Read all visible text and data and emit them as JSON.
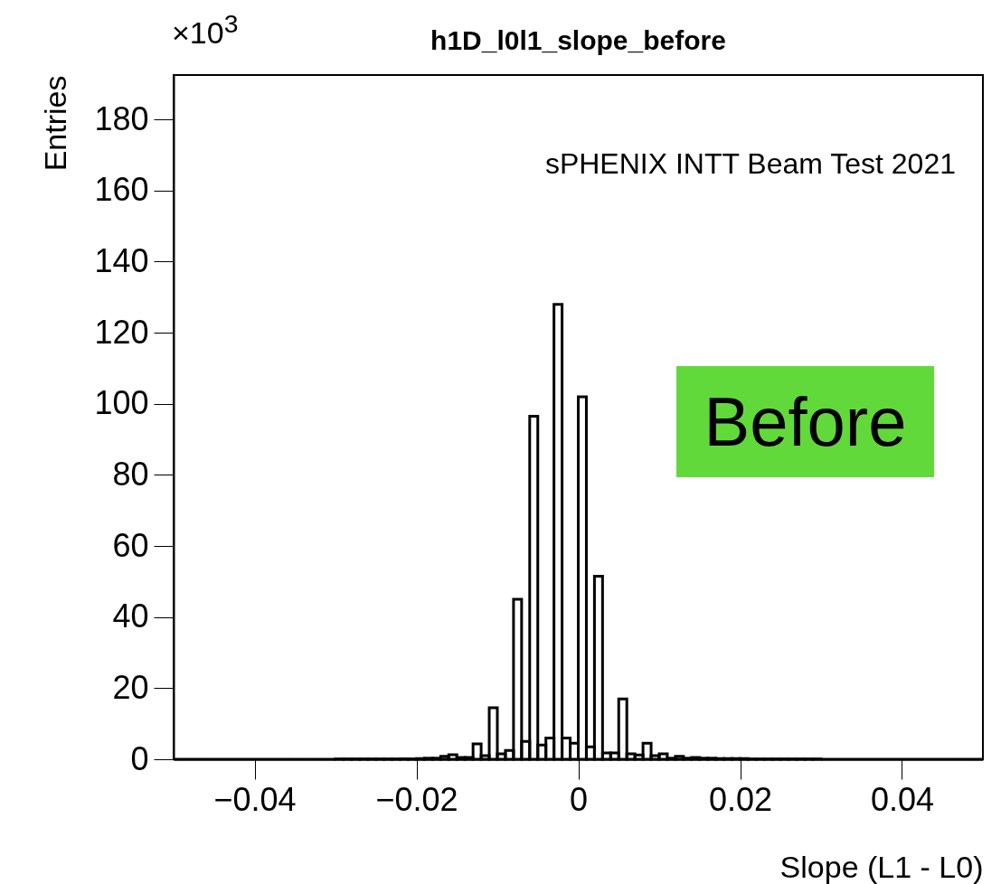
{
  "chart_data": {
    "type": "histogram",
    "title": "h1D_l0l1_slope_before",
    "xlabel": "Slope (L1 - L0)",
    "ylabel": "Entries",
    "annotations": [
      "×10$^{3}$",
      "sPHENIX INTT Beam Test 2021",
      "Before"
    ],
    "bins": [
      -0.05,
      -0.049,
      -0.048,
      -0.047,
      -0.046,
      -0.045,
      -0.044,
      -0.043,
      -0.042,
      -0.041,
      -0.04,
      -0.039,
      -0.038,
      -0.037,
      -0.036,
      -0.035,
      -0.034,
      -0.033,
      -0.032,
      -0.031,
      -0.03,
      -0.029,
      -0.028,
      -0.027,
      -0.026,
      -0.025,
      -0.024,
      -0.023,
      -0.022,
      -0.021,
      -0.02,
      -0.019,
      -0.018,
      -0.017,
      -0.016,
      -0.015,
      -0.014,
      -0.013,
      -0.012,
      -0.011,
      -0.01,
      -0.009,
      -0.008,
      -0.007,
      -0.006,
      -0.005,
      -0.004,
      -0.003,
      -0.002,
      -0.001,
      0,
      0.001,
      0.002,
      0.003,
      0.004,
      0.005,
      0.006,
      0.007,
      0.008,
      0.009,
      0.01,
      0.011,
      0.012,
      0.013,
      0.014,
      0.015,
      0.016,
      0.017,
      0.018,
      0.019,
      0.02,
      0.021,
      0.022,
      0.023,
      0.024,
      0.025,
      0.026,
      0.027,
      0.028,
      0.029,
      0.03,
      0.031,
      0.032,
      0.033,
      0.034,
      0.035,
      0.036,
      0.037,
      0.038,
      0.039,
      0.04,
      0.041,
      0.042,
      0.043,
      0.044,
      0.045,
      0.046,
      0.047,
      0.048,
      0.049,
      0.05
    ],
    "values": [
      0,
      0,
      0,
      0,
      0,
      0,
      0,
      0,
      0,
      0,
      0,
      0,
      0,
      0,
      0,
      0,
      0,
      0,
      0,
      0,
      0.1,
      0.1,
      0.1,
      0.1,
      0.1,
      0.1,
      0.1,
      0.1,
      0.1,
      0.1,
      0.2,
      0.3,
      0.3,
      0.8,
      1.3,
      0.5,
      0.5,
      4.3,
      1,
      14.5,
      1.5,
      2.5,
      45,
      5,
      96.5,
      4,
      6,
      128,
      6,
      4.5,
      102,
      3.5,
      51.5,
      1.8,
      1.8,
      17,
      1.5,
      1.2,
      4.5,
      1,
      1.5,
      0.3,
      0.8,
      0.3,
      0.5,
      0.3,
      0.3,
      0.2,
      0.2,
      0.2,
      0.2,
      0.1,
      0.1,
      0.1,
      0.1,
      0.1,
      0.1,
      0.1,
      0.1,
      0.1,
      0,
      0,
      0,
      0,
      0,
      0,
      0,
      0,
      0,
      0,
      0,
      0,
      0,
      0,
      0,
      0,
      0,
      0,
      0,
      0
    ],
    "color": "#000000",
    "xlim": [
      -0.05,
      0.05
    ],
    "xticks": [
      -0.04,
      -0.02,
      0,
      0.02,
      0.04
    ],
    "ylim": [
      0,
      192.5
    ],
    "yticks": [
      0,
      20,
      40,
      60,
      80,
      100,
      120,
      140,
      160,
      180
    ],
    "grid": false
  }
}
